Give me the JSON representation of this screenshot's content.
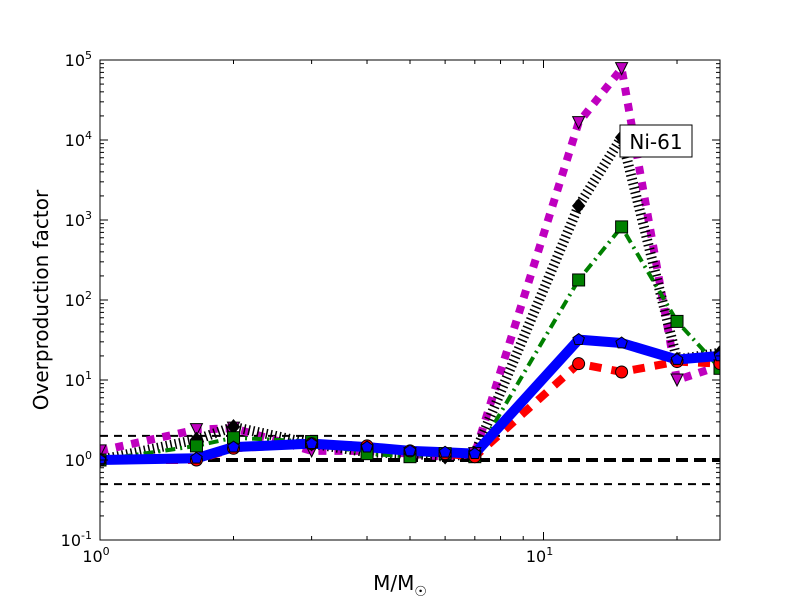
{
  "chart_data": {
    "type": "line",
    "title": "",
    "xlabel": "M/M",
    "xlabel_symbol": "☉",
    "ylabel": "Overproduction factor",
    "xscale": "log",
    "yscale": "log",
    "xlim": [
      1,
      25
    ],
    "ylim": [
      0.1,
      100000
    ],
    "x_ticks": [
      {
        "value": 1,
        "base": "10",
        "exp": "0"
      },
      {
        "value": 10,
        "base": "10",
        "exp": "1"
      }
    ],
    "y_ticks": [
      {
        "value": 0.1,
        "base": "10",
        "exp": "-1"
      },
      {
        "value": 1,
        "base": "10",
        "exp": "0"
      },
      {
        "value": 10,
        "base": "10",
        "exp": "1"
      },
      {
        "value": 100,
        "base": "10",
        "exp": "2"
      },
      {
        "value": 1000,
        "base": "10",
        "exp": "3"
      },
      {
        "value": 10000,
        "base": "10",
        "exp": "4"
      },
      {
        "value": 100000,
        "base": "10",
        "exp": "5"
      }
    ],
    "annotation": "Ni-61",
    "reference_lines": [
      0.5,
      1,
      2
    ],
    "x": [
      1,
      1.65,
      2,
      3,
      4,
      5,
      6,
      7,
      12,
      15,
      20,
      25
    ],
    "series": [
      {
        "name": "magenta-triangles",
        "color": "#bf00bf",
        "marker": "triangle-down",
        "style": "dotted",
        "values": [
          1.3,
          2.4,
          2.5,
          1.3,
          1.3,
          1.2,
          1.1,
          1.2,
          16500,
          78000,
          10,
          15
        ]
      },
      {
        "name": "black-diamonds",
        "color": "#000000",
        "marker": "diamond",
        "style": "hatched",
        "values": [
          1.0,
          1.8,
          2.6,
          1.6,
          1.25,
          1.2,
          1.1,
          1.2,
          1500,
          10800,
          18,
          22
        ]
      },
      {
        "name": "green-squares",
        "color": "#008000",
        "marker": "square",
        "style": "dashdot",
        "values": [
          1.0,
          1.5,
          1.9,
          1.7,
          1.2,
          1.1,
          1.2,
          1.1,
          178,
          820,
          54,
          14
        ]
      },
      {
        "name": "red-circles",
        "color": "#ff0000",
        "marker": "circle",
        "style": "dashed",
        "values": [
          1.0,
          1.0,
          1.4,
          1.6,
          1.5,
          1.3,
          1.2,
          1.1,
          16,
          12.6,
          17,
          16
        ]
      },
      {
        "name": "blue-pentagons",
        "color": "#0000ff",
        "marker": "pentagon",
        "style": "solid",
        "values": [
          1.0,
          1.05,
          1.45,
          1.6,
          1.45,
          1.3,
          1.25,
          1.2,
          32,
          29,
          18,
          20
        ]
      }
    ]
  }
}
